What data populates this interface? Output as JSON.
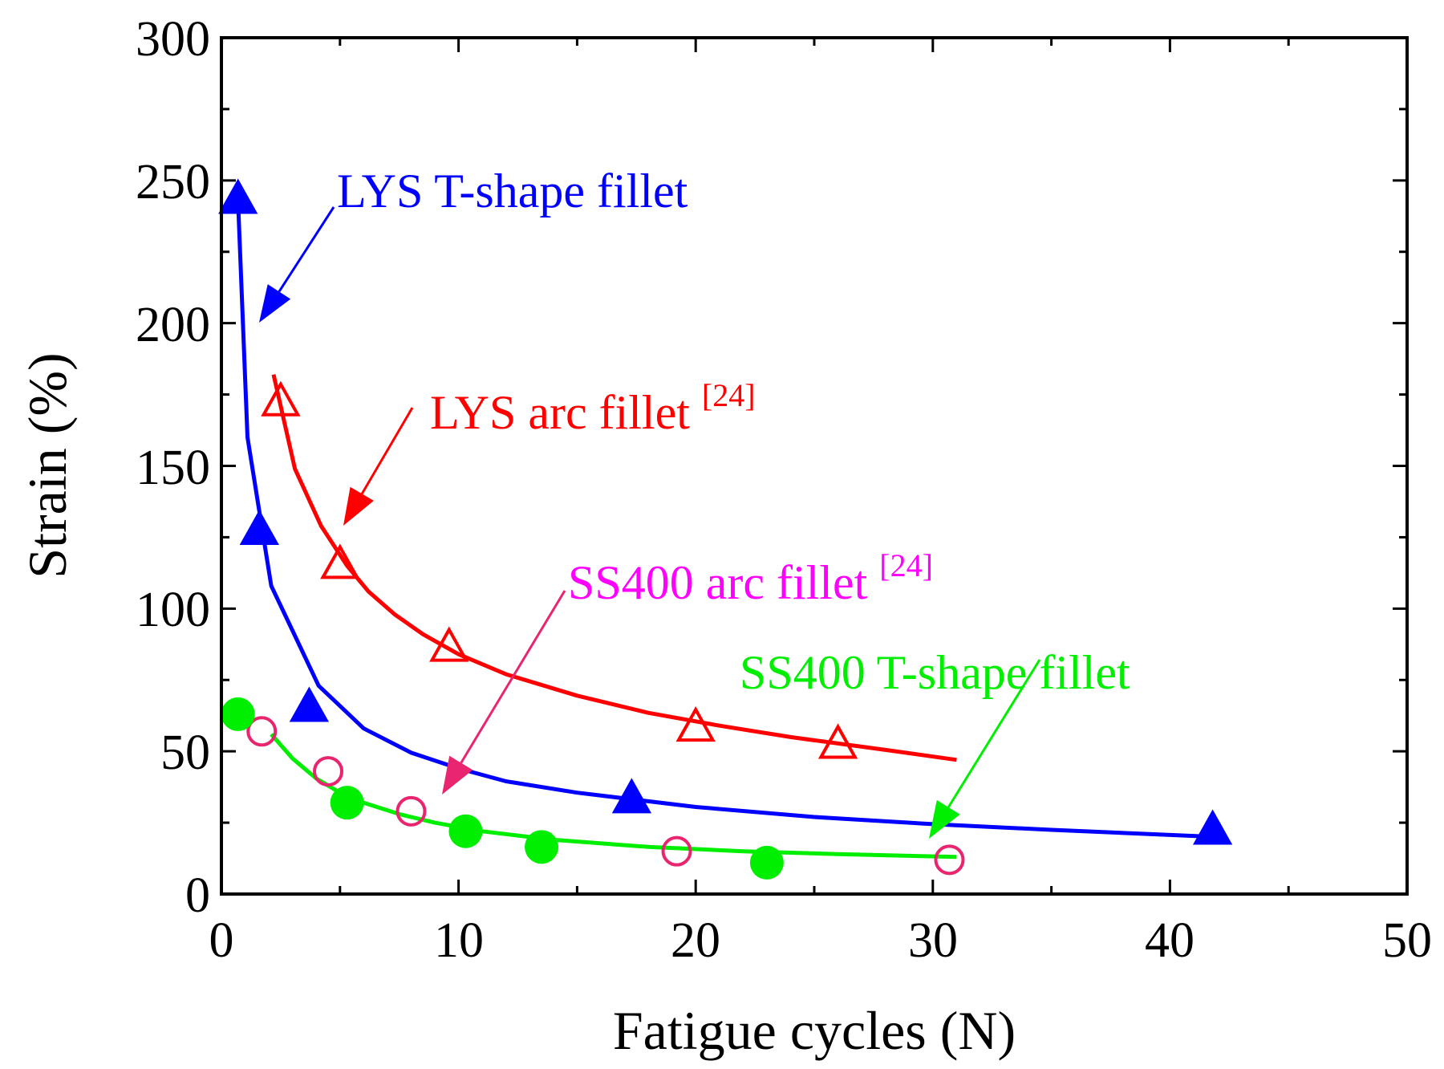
{
  "chart_data": {
    "type": "scatter",
    "title": "",
    "xlabel": "Fatigue cycles (N)",
    "ylabel": "Strain (%)",
    "xlim": [
      0,
      50
    ],
    "ylim": [
      0,
      300
    ],
    "xticks": [
      0,
      10,
      20,
      30,
      40,
      50
    ],
    "yticks": [
      0,
      50,
      100,
      150,
      200,
      250,
      300
    ],
    "xtick_labels": [
      "0",
      "10",
      "20",
      "30",
      "40",
      "50"
    ],
    "ytick_labels": [
      "0",
      "50",
      "100",
      "150",
      "200",
      "250",
      "300"
    ],
    "grid": false,
    "series": [
      {
        "name": "LYS T-shape fillet",
        "color": "#0000ff",
        "marker": "triangle-filled",
        "points": [
          [
            0.7,
            243
          ],
          [
            1.6,
            127
          ],
          [
            3.7,
            65
          ],
          [
            17.3,
            33
          ],
          [
            41.8,
            22
          ]
        ],
        "fit": [
          [
            0.7,
            243
          ],
          [
            1.1,
            160
          ],
          [
            2.1,
            108
          ],
          [
            4.1,
            73
          ],
          [
            6,
            58
          ],
          [
            8,
            49.5
          ],
          [
            10,
            44
          ],
          [
            12,
            39.5
          ],
          [
            15,
            35.5
          ],
          [
            20,
            30.5
          ],
          [
            25,
            27
          ],
          [
            30,
            24.5
          ],
          [
            35,
            22.5
          ],
          [
            42,
            20
          ]
        ]
      },
      {
        "name": "LYS arc fillet",
        "color": "#ff0000",
        "marker": "triangle-open",
        "points": [
          [
            2.5,
            172
          ],
          [
            5,
            115
          ],
          [
            9.6,
            86
          ],
          [
            20,
            58
          ],
          [
            26,
            52
          ]
        ],
        "fit": [
          [
            2.2,
            182
          ],
          [
            3.1,
            149
          ],
          [
            4.2,
            129
          ],
          [
            5.3,
            115
          ],
          [
            6.2,
            106
          ],
          [
            7.3,
            98
          ],
          [
            8.5,
            91
          ],
          [
            10,
            84
          ],
          [
            12,
            77
          ],
          [
            15,
            69.5
          ],
          [
            18,
            63.5
          ],
          [
            21,
            59
          ],
          [
            24,
            55
          ],
          [
            28,
            50.5
          ],
          [
            31,
            47
          ]
        ]
      },
      {
        "name": "SS400 arc fillet",
        "color": "#e8256e",
        "marker": "circle-open",
        "points": [
          [
            1.7,
            57
          ],
          [
            4.5,
            43
          ],
          [
            8,
            29
          ],
          [
            19.2,
            15
          ],
          [
            30.7,
            12
          ]
        ],
        "fit": []
      },
      {
        "name": "SS400 T-shape fillet",
        "color": "#00ee00",
        "marker": "circle-filled",
        "points": [
          [
            0.7,
            63
          ],
          [
            5.3,
            32
          ],
          [
            10.3,
            22
          ],
          [
            13.5,
            16.5
          ],
          [
            23,
            11
          ]
        ],
        "fit": [
          [
            2.1,
            56
          ],
          [
            3,
            47.5
          ],
          [
            4,
            40.5
          ],
          [
            5,
            35.5
          ],
          [
            6,
            32
          ],
          [
            7.5,
            28
          ],
          [
            9,
            25
          ],
          [
            11,
            22
          ],
          [
            14,
            19
          ],
          [
            18,
            16.5
          ],
          [
            22,
            15
          ],
          [
            26,
            14
          ],
          [
            31,
            13
          ]
        ]
      }
    ],
    "annotations": [
      {
        "text": "LYS T-shape fillet",
        "sup": "",
        "color": "#0000ff"
      },
      {
        "text": "LYS arc fillet ",
        "sup": "[24]",
        "color": "#ff0000"
      },
      {
        "text": "SS400 arc fillet ",
        "sup": "[24]",
        "color": "#ff00ff"
      },
      {
        "text": "SS400 T-shape fillet",
        "sup": "",
        "color": "#00ee00"
      }
    ]
  }
}
